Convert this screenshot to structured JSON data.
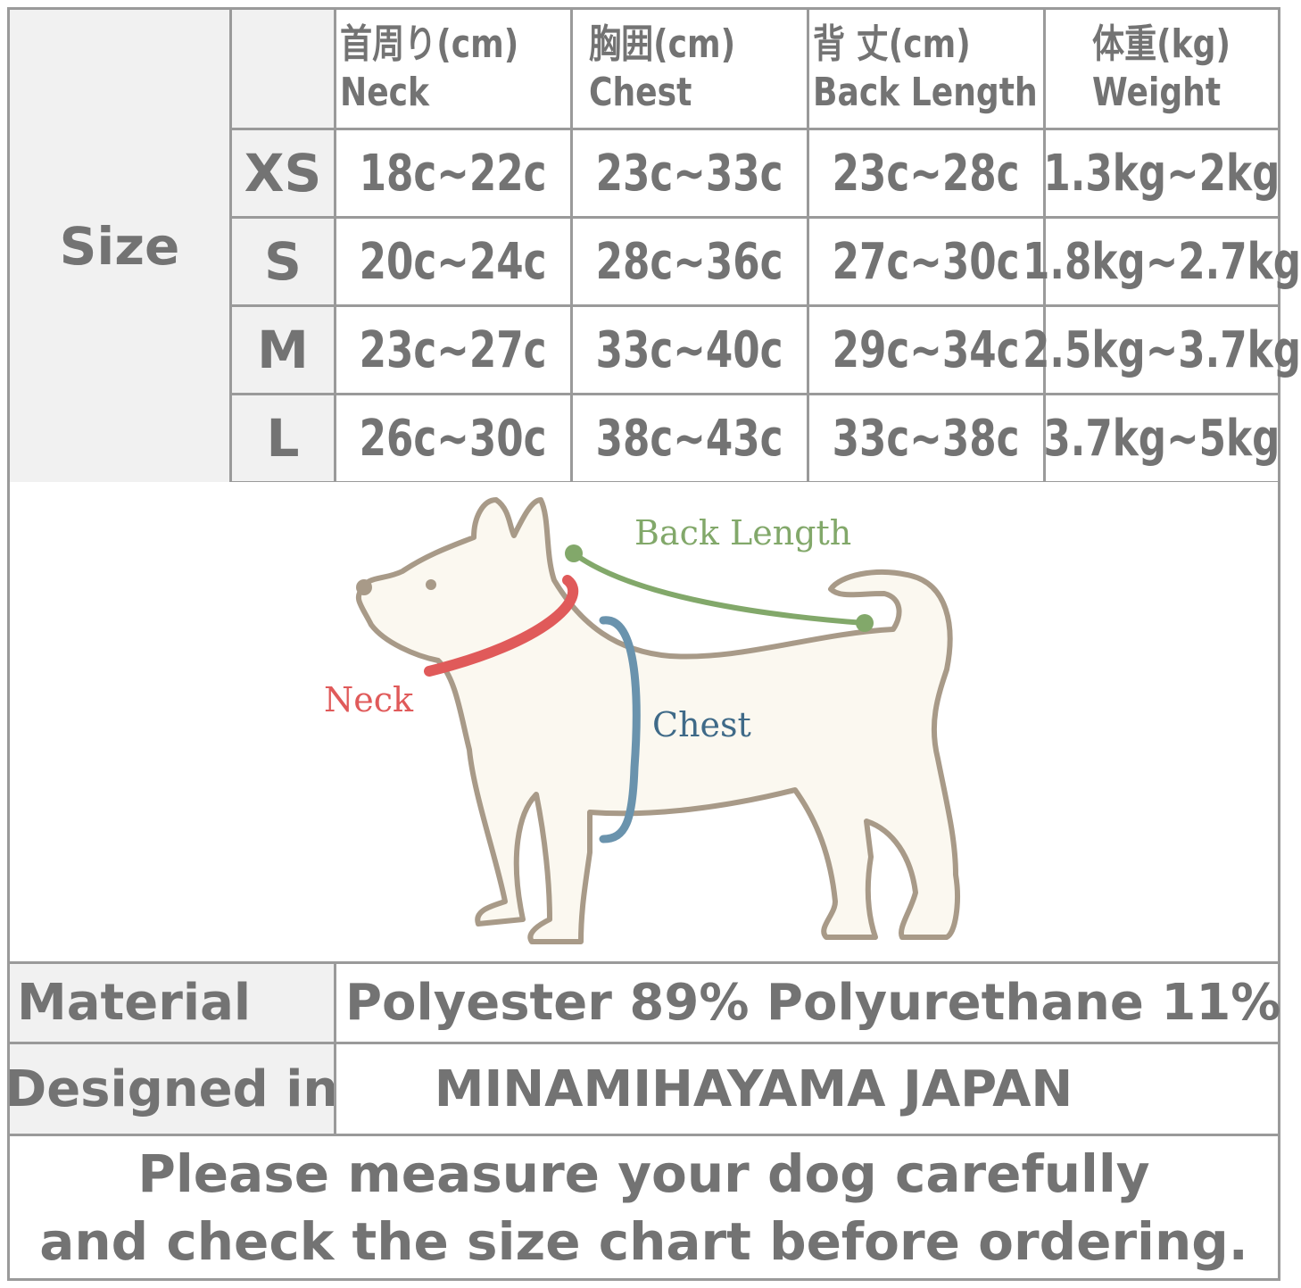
{
  "table": {
    "size_label": "Size",
    "headers": [
      {
        "ja": "首周り(cm)",
        "en": "Neck"
      },
      {
        "ja": "胸囲(cm)",
        "en": "Chest"
      },
      {
        "ja": "背 丈(cm)",
        "en": "Back Length"
      },
      {
        "ja": "体重(kg)",
        "en": "Weight"
      }
    ],
    "rows": [
      {
        "size": "XS",
        "neck": "18c~22c",
        "chest": "23c~33c",
        "back": "23c~28c",
        "weight": "1.3kg~2kg"
      },
      {
        "size": "S",
        "neck": "20c~24c",
        "chest": "28c~36c",
        "back": "27c~30c",
        "weight": "1.8kg~2.7kg"
      },
      {
        "size": "M",
        "neck": "23c~27c",
        "chest": "33c~40c",
        "back": "29c~34c",
        "weight": "2.5kg~3.7kg"
      },
      {
        "size": "L",
        "neck": "26c~30c",
        "chest": "38c~43c",
        "back": "33c~38c",
        "weight": "3.7kg~5kg"
      }
    ]
  },
  "diagram": {
    "labels": {
      "back": "Back Length",
      "neck": "Neck",
      "chest": "Chest"
    },
    "colors": {
      "back": "#82a86a",
      "neck": "#e05a5a",
      "chest": "#6a93ad",
      "outline": "#a89a88",
      "fill": "#fbf8f0"
    }
  },
  "info": {
    "material_label": "Material",
    "material_value": "Polyester 89% Polyurethane 11%",
    "designed_label": "Designed in",
    "designed_value": "MINAMIHAYAMA JAPAN"
  },
  "footer": {
    "line1": "Please measure your dog carefully",
    "line2": "and check the size chart before ordering."
  }
}
